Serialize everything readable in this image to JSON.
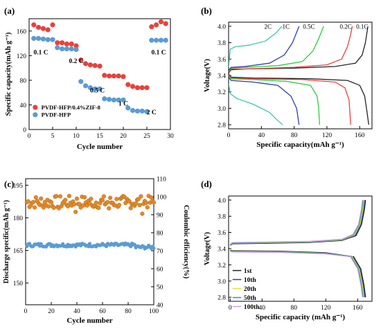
{
  "chart_data": [
    {
      "panel": "(a)",
      "type": "scatter",
      "xlabel": "Cycle number",
      "ylabel": "Specific capacity(mAh g⁻¹)",
      "xlim": [
        0,
        30
      ],
      "ylim": [
        0,
        180
      ],
      "xticks": [
        0,
        5,
        10,
        15,
        20,
        25,
        30
      ],
      "yticks": [
        0,
        40,
        80,
        120,
        160
      ],
      "legend_position": "lower-left",
      "series": [
        {
          "name": "PVDF-HFP/0.4%ZIF-8",
          "color": "#e8413c",
          "x": [
            1,
            2,
            3,
            4,
            5,
            6,
            7,
            8,
            9,
            10,
            11,
            12,
            13,
            14,
            15,
            16,
            17,
            18,
            19,
            20,
            21,
            22,
            23,
            24,
            25,
            26,
            27,
            28,
            29
          ],
          "y": [
            170,
            166,
            164,
            162,
            170,
            141,
            141,
            139,
            139,
            136,
            113,
            107,
            105,
            104,
            103,
            88,
            87,
            87,
            87,
            86,
            73,
            70,
            68,
            68,
            68,
            167,
            170,
            175,
            172
          ]
        },
        {
          "name": "PVDF-HFP",
          "color": "#5b9bd5",
          "x": [
            1,
            2,
            3,
            4,
            5,
            6,
            7,
            8,
            9,
            10,
            11,
            12,
            13,
            14,
            15,
            16,
            17,
            18,
            19,
            20,
            21,
            22,
            23,
            24,
            25,
            26,
            27,
            28,
            29
          ],
          "y": [
            148,
            148,
            147,
            146,
            146,
            133,
            131,
            131,
            131,
            130,
            78,
            71,
            68,
            66,
            66,
            50,
            49,
            48,
            48,
            48,
            35,
            31,
            30,
            30,
            29,
            145,
            145,
            145,
            145
          ]
        }
      ],
      "annotations": [
        "0.1 C",
        "0.2 C",
        "0.5 C",
        "1 C",
        "2 C",
        "0.1 C"
      ]
    },
    {
      "panel": "(b)",
      "type": "line",
      "xlabel": "Specific capacity(mAh g⁻¹)",
      "ylabel": "Voltage(V)",
      "xlim": [
        0,
        175
      ],
      "ylim": [
        2.75,
        4.05
      ],
      "xticks": [
        0,
        40,
        80,
        120,
        160
      ],
      "yticks": [
        2.8,
        3.0,
        3.2,
        3.4,
        3.6,
        3.8,
        4.0
      ],
      "series": [
        {
          "name": "0.1C",
          "color": "#222222",
          "charge": [
            [
              0,
              3.43
            ],
            [
              3,
              3.47
            ],
            [
              20,
              3.48
            ],
            [
              80,
              3.49
            ],
            [
              130,
              3.51
            ],
            [
              155,
              3.55
            ],
            [
              163,
              3.65
            ],
            [
              167,
              3.8
            ],
            [
              170,
              4.0
            ]
          ],
          "discharge": [
            [
              0,
              3.42
            ],
            [
              3,
              3.38
            ],
            [
              30,
              3.37
            ],
            [
              100,
              3.36
            ],
            [
              145,
              3.34
            ],
            [
              160,
              3.28
            ],
            [
              166,
              3.15
            ],
            [
              169,
              2.95
            ],
            [
              171,
              2.8
            ]
          ]
        },
        {
          "name": "0.2C",
          "color": "#e8413c",
          "charge": [
            [
              0,
              3.44
            ],
            [
              3,
              3.48
            ],
            [
              20,
              3.48
            ],
            [
              80,
              3.5
            ],
            [
              120,
              3.53
            ],
            [
              138,
              3.6
            ],
            [
              145,
              3.75
            ],
            [
              149,
              3.9
            ],
            [
              151,
              4.0
            ]
          ],
          "discharge": [
            [
              0,
              3.41
            ],
            [
              3,
              3.37
            ],
            [
              30,
              3.36
            ],
            [
              90,
              3.35
            ],
            [
              130,
              3.32
            ],
            [
              142,
              3.25
            ],
            [
              147,
              3.1
            ],
            [
              148,
              2.95
            ],
            [
              149,
              2.8
            ]
          ]
        },
        {
          "name": "0.5C",
          "color": "#2ecc40",
          "charge": [
            [
              0,
              3.45
            ],
            [
              3,
              3.49
            ],
            [
              20,
              3.5
            ],
            [
              60,
              3.52
            ],
            [
              90,
              3.57
            ],
            [
              103,
              3.7
            ],
            [
              110,
              3.85
            ],
            [
              116,
              4.0
            ]
          ],
          "discharge": [
            [
              0,
              3.4
            ],
            [
              3,
              3.36
            ],
            [
              30,
              3.35
            ],
            [
              70,
              3.33
            ],
            [
              100,
              3.28
            ],
            [
              108,
              3.15
            ],
            [
              110,
              3.0
            ],
            [
              111,
              2.8
            ]
          ]
        },
        {
          "name": "1C",
          "color": "#2c3ea8",
          "charge": [
            [
              0,
              3.46
            ],
            [
              3,
              3.5
            ],
            [
              20,
              3.51
            ],
            [
              50,
              3.55
            ],
            [
              68,
              3.65
            ],
            [
              78,
              3.8
            ],
            [
              86,
              4.0
            ]
          ],
          "discharge": [
            [
              0,
              3.38
            ],
            [
              3,
              3.34
            ],
            [
              30,
              3.32
            ],
            [
              60,
              3.28
            ],
            [
              76,
              3.15
            ],
            [
              83,
              3.0
            ],
            [
              86,
              2.8
            ]
          ]
        },
        {
          "name": "2C",
          "color": "#3fc4b0",
          "charge": [
            [
              0,
              3.5
            ],
            [
              2,
              3.72
            ],
            [
              8,
              3.75
            ],
            [
              25,
              3.77
            ],
            [
              45,
              3.82
            ],
            [
              58,
              3.92
            ],
            [
              65,
              4.0
            ]
          ],
          "discharge": [
            [
              0,
              3.3
            ],
            [
              2,
              3.18
            ],
            [
              10,
              3.12
            ],
            [
              30,
              3.05
            ],
            [
              50,
              2.95
            ],
            [
              60,
              2.85
            ],
            [
              66,
              2.8
            ]
          ]
        }
      ]
    },
    {
      "panel": "(c)",
      "type": "scatter",
      "xlabel": "Cycle number",
      "ylabel": "Discharge specific(mAh g⁻¹)",
      "y2label": "Coulombic efficiency(%)",
      "xlim": [
        0,
        100
      ],
      "ylim": [
        140,
        198
      ],
      "y2lim": [
        40,
        110
      ],
      "xticks": [
        0,
        20,
        40,
        60,
        80,
        100
      ],
      "yticks": [
        150,
        165,
        180,
        195
      ],
      "y2ticks": [
        40,
        50,
        60,
        70,
        80,
        90,
        100,
        110
      ],
      "series": [
        {
          "name": "Discharge capacity",
          "axis": "left",
          "color": "#5b9bd5",
          "x_start": 1,
          "x_end": 100,
          "y_approx": 167.5
        },
        {
          "name": "Coulombic efficiency",
          "axis": "right",
          "color": "#e08a2a",
          "x_start": 1,
          "x_end": 100,
          "y_approx": 97
        }
      ]
    },
    {
      "panel": "(d)",
      "type": "line",
      "xlabel": "Specific capacity (mAh g⁻¹)",
      "ylabel": "Voltage(V)",
      "xlim": [
        -2,
        178
      ],
      "ylim": [
        2.75,
        4.05
      ],
      "xticks": [
        0,
        40,
        80,
        120,
        160
      ],
      "yticks": [
        2.8,
        3.0,
        3.2,
        3.4,
        3.6,
        3.8,
        4.0
      ],
      "legend_position": "lower-left",
      "series": [
        {
          "name": "1st",
          "color": "#222222",
          "cap": 170
        },
        {
          "name": "10th",
          "color": "#2c3ea8",
          "cap": 169
        },
        {
          "name": "20th",
          "color": "#e5e02a",
          "cap": 168
        },
        {
          "name": "50th",
          "color": "#2e9e8c",
          "cap": 167
        },
        {
          "name": "100th",
          "color": "#c79ce6",
          "cap": 166
        }
      ]
    }
  ]
}
